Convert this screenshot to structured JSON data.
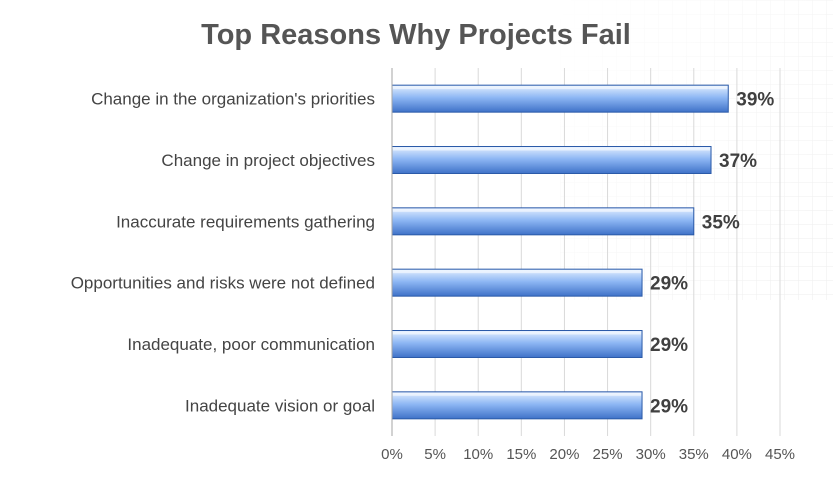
{
  "chart_data": {
    "type": "bar",
    "orientation": "horizontal",
    "title": "Top Reasons Why Projects Fail",
    "categories": [
      "Change in the organization's priorities",
      "Change in project objectives",
      "Inaccurate requirements gathering",
      "Opportunities and risks were not defined",
      "Inadequate, poor communication",
      "Inadequate vision or goal"
    ],
    "values": [
      39,
      37,
      35,
      29,
      29,
      29
    ],
    "value_labels": [
      "39%",
      "37%",
      "35%",
      "29%",
      "29%",
      "29%"
    ],
    "xlim": [
      0,
      45
    ],
    "xticks": [
      0,
      5,
      10,
      15,
      20,
      25,
      30,
      35,
      40,
      45
    ],
    "xtick_labels": [
      "0%",
      "5%",
      "10%",
      "15%",
      "20%",
      "25%",
      "30%",
      "35%",
      "40%",
      "45%"
    ],
    "xlabel": "",
    "ylabel": "",
    "grid": "vertical",
    "legend": "none",
    "colors": {
      "bar_top": "#e3efff",
      "bar_mid": "#8fb8f4",
      "bar_bottom": "#3f72c8",
      "bar_edge": "#2b5aa8",
      "grid": "#d9d9d9",
      "axis": "#a6a6a6"
    }
  }
}
